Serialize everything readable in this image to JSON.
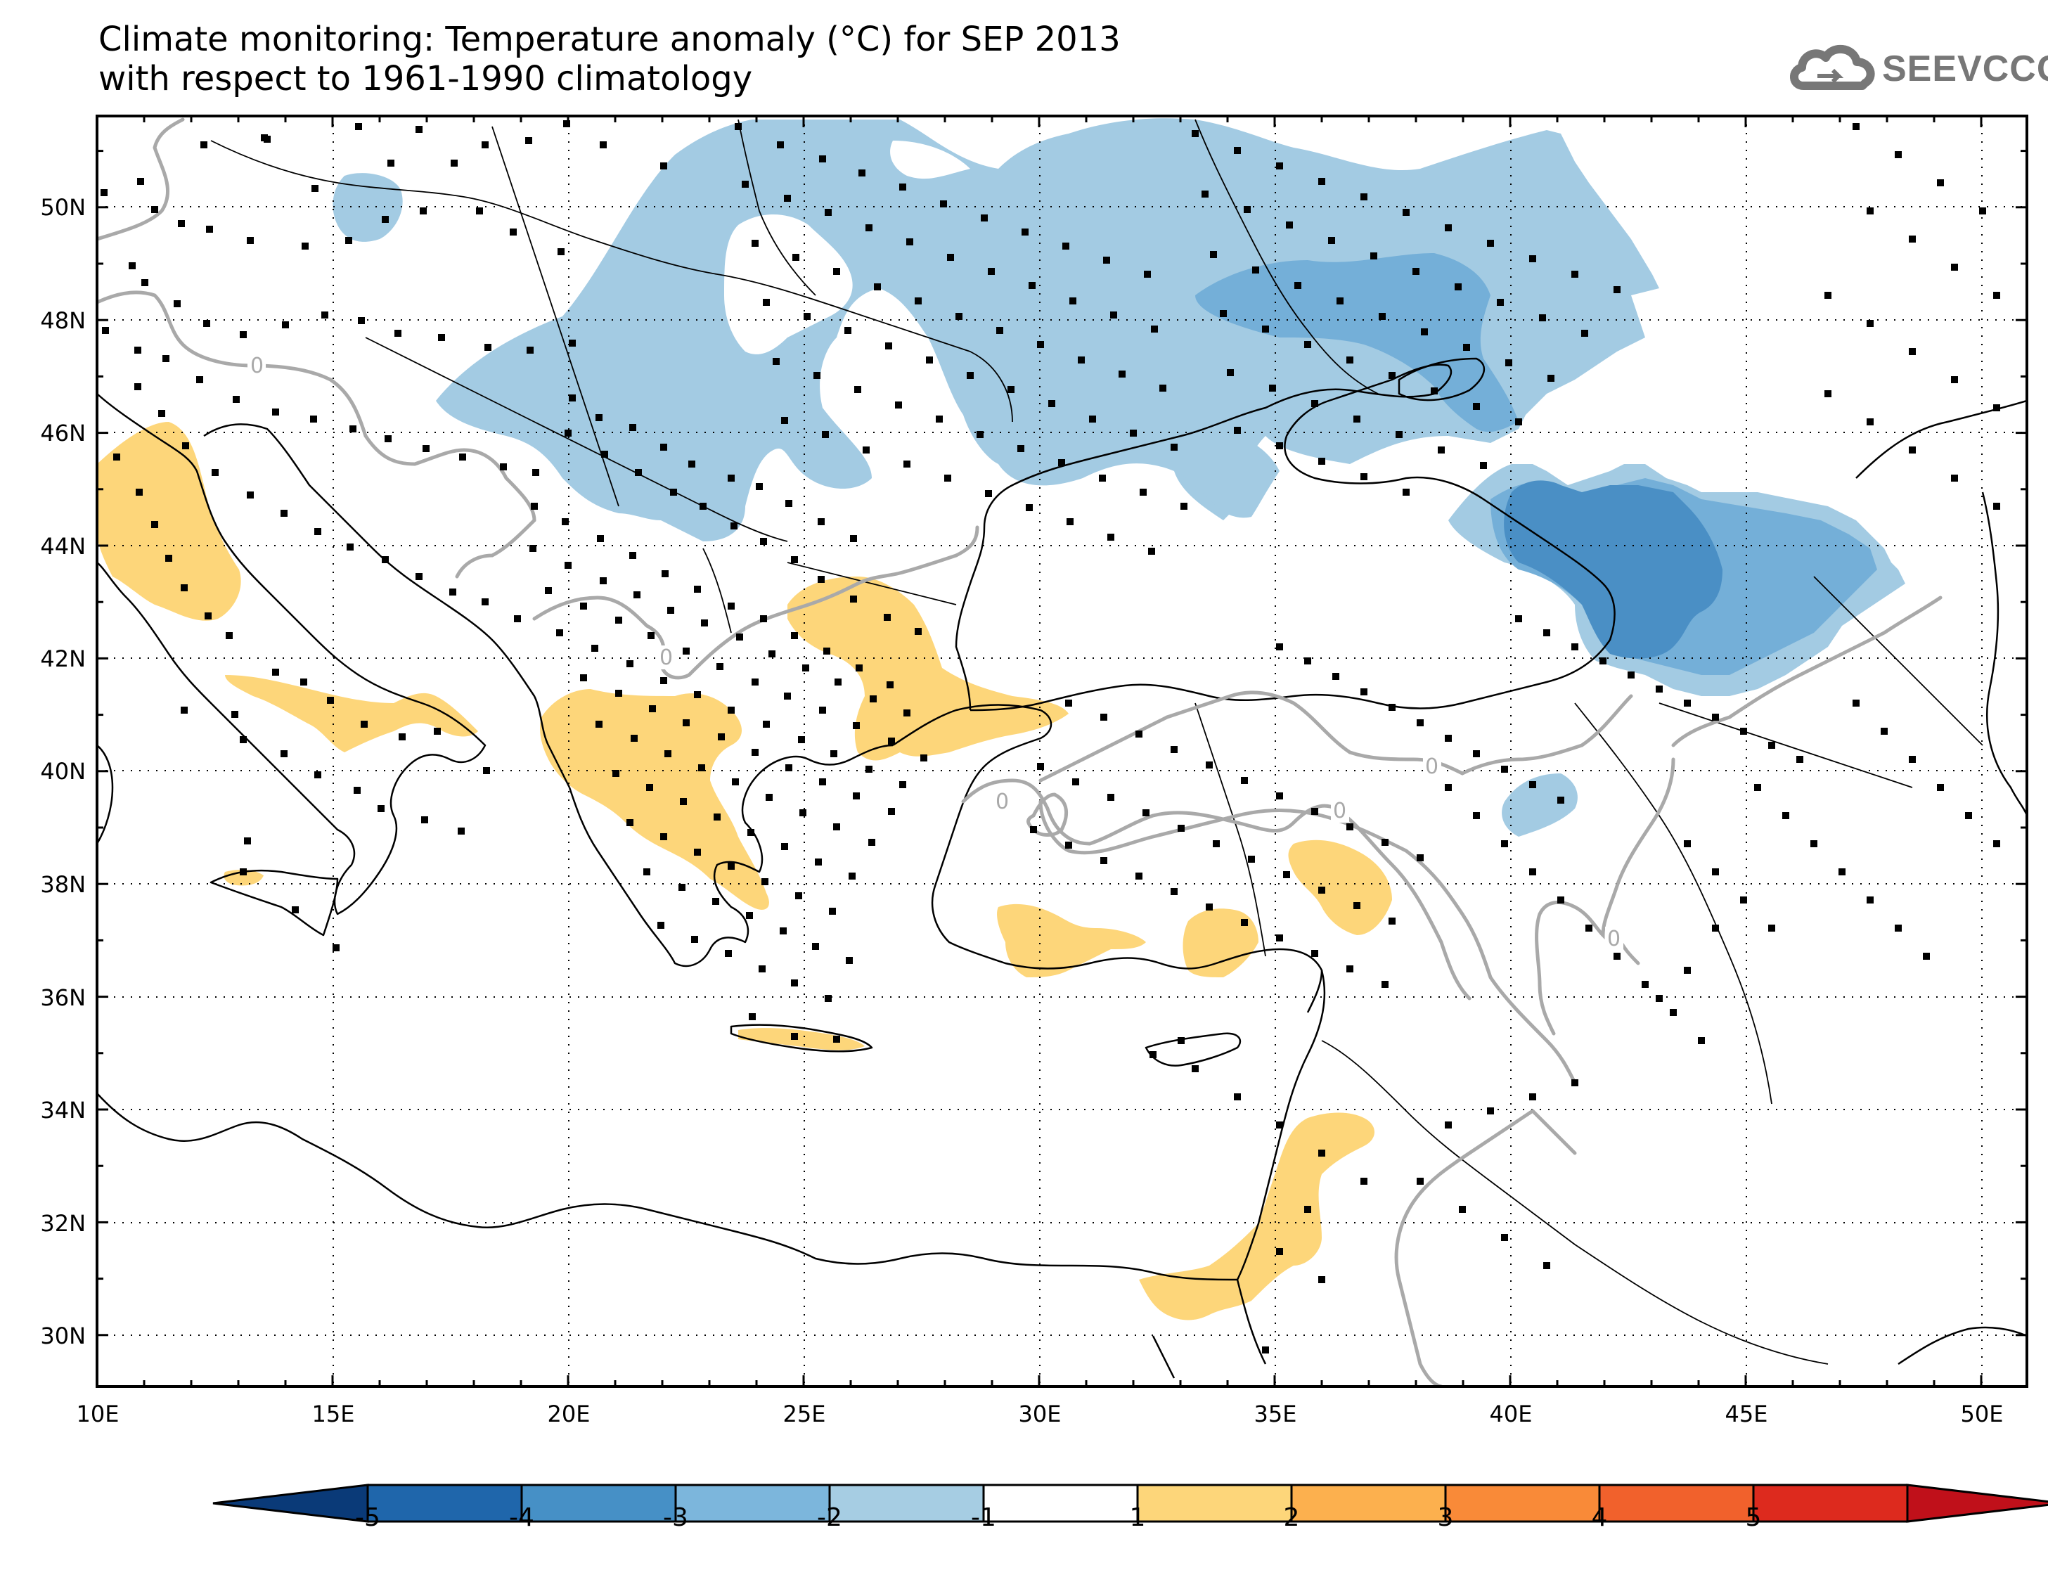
{
  "title": {
    "line1": "Climate monitoring: Temperature anomaly (°C) for SEP 2013",
    "line2": "with respect to 1961-1990 climatology"
  },
  "logo": {
    "text": "SEEVCCC",
    "icon": "cloud-icon"
  },
  "axes": {
    "lon_ticks": [
      "10E",
      "15E",
      "20E",
      "25E",
      "30E",
      "35E",
      "40E",
      "45E",
      "50E"
    ],
    "lat_ticks": [
      "30N",
      "32N",
      "34N",
      "36N",
      "38N",
      "40N",
      "42N",
      "44N",
      "46N",
      "48N",
      "50N"
    ]
  },
  "contour_label": "0",
  "colorbar": {
    "labels": [
      "-5",
      "-4",
      "-3",
      "-2",
      "-1",
      "1",
      "2",
      "3",
      "4",
      "5"
    ],
    "colors": [
      "#0a3a78",
      "#1f66ab",
      "#4690c6",
      "#7cb6dc",
      "#a6cde3",
      "#ffffff",
      "#fdd67a",
      "#fcb04e",
      "#f98a38",
      "#f1612c",
      "#dd2a1e",
      "#c0101a"
    ]
  },
  "colors": {
    "blue_light": "#a3cbe3",
    "blue_mid": "#74afd8",
    "blue_dark": "#4a8fc5",
    "yellow": "#fdd67a",
    "contour": "#a9a9a9",
    "coast": "#000000"
  }
}
